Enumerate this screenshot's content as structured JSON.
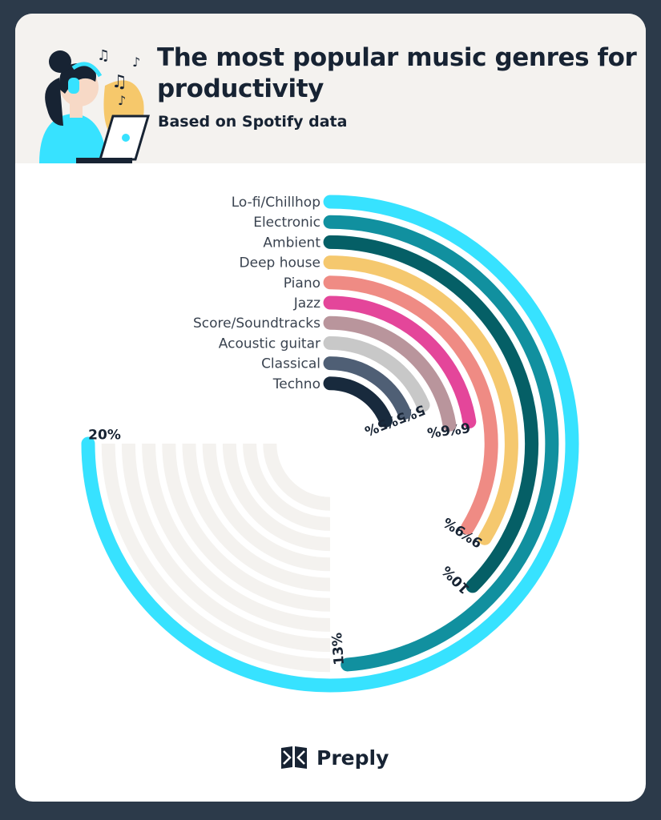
{
  "header": {
    "title": "The most popular music genres for productivity",
    "subtitle": "Based on Spotify data"
  },
  "brand": {
    "name": "Preply"
  },
  "chart_data": {
    "type": "radial-bar",
    "title": "The most popular music genres for productivity",
    "subtitle": "Based on Spotify data",
    "unit": "%",
    "track_color": "#f4f2ef",
    "categories": [
      "Lo-fi/Chillhop",
      "Electronic",
      "Ambient",
      "Deep house",
      "Piano",
      "Jazz",
      "Score/Soundtracks",
      "Acoustic guitar",
      "Classical",
      "Techno"
    ],
    "values": [
      20,
      13,
      10,
      9,
      9,
      6,
      6,
      5,
      5,
      5
    ],
    "value_labels": [
      "20%",
      "13%",
      "10%",
      "9%",
      "9%",
      "6%",
      "6%",
      "5%",
      "5%",
      "5%"
    ],
    "colors": [
      "#37e2ff",
      "#11909f",
      "#055f66",
      "#f5c86e",
      "#ef8b84",
      "#e4469a",
      "#b9959c",
      "#c8c8c8",
      "#4f5f75",
      "#182a3d"
    ]
  }
}
